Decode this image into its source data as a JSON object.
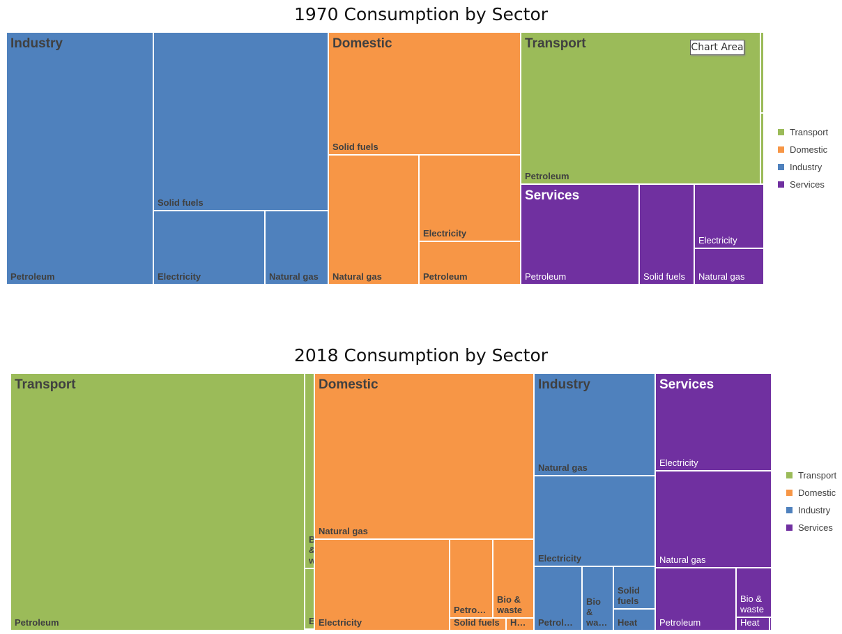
{
  "colors": {
    "Transport": "#9BBB59",
    "Domestic": "#F79646",
    "Industry": "#4F81BD",
    "Services": "#7030A0"
  },
  "tooltip": "Chart Area",
  "chart_data": [
    {
      "type": "treemap",
      "title": "1970 Consumption by Sector",
      "legend": [
        "Transport",
        "Domestic",
        "Industry",
        "Services"
      ],
      "legend_placement": "right",
      "sectors": [
        {
          "name": "Industry",
          "leaves": [
            {
              "label": "Petroleum",
              "value": 76.4
            },
            {
              "label": "Solid fuels",
              "value": 64.3
            },
            {
              "label": "Electricity",
              "value": 17.0
            },
            {
              "label": "Natural gas",
              "value": 9.6
            }
          ]
        },
        {
          "name": "Domestic",
          "leaves": [
            {
              "label": "Solid fuels",
              "value": 48.6
            },
            {
              "label": "Natural gas",
              "value": 24.2
            },
            {
              "label": "Electricity",
              "value": 18.1
            },
            {
              "label": "Petroleum",
              "value": 9.1
            }
          ]
        },
        {
          "name": "Transport",
          "leaves": [
            {
              "label": "Petroleum",
              "value": 75.0
            },
            {
              "label": "",
              "value": 0.6
            },
            {
              "label": "",
              "value": 0.5
            }
          ]
        },
        {
          "name": "Services",
          "leaves": [
            {
              "label": "Petroleum",
              "value": 24.5
            },
            {
              "label": "Solid fuels",
              "value": 11.4
            },
            {
              "label": "Electricity",
              "value": 9.2
            },
            {
              "label": "Natural gas",
              "value": 5.2
            }
          ]
        }
      ]
    },
    {
      "type": "treemap",
      "title": "2018 Consumption by Sector",
      "legend": [
        "Transport",
        "Domestic",
        "Industry",
        "Services"
      ],
      "legend_placement": "right",
      "sectors": [
        {
          "name": "Transport",
          "leaves": [
            {
              "label": "Petroleum",
              "value": 155.7
            },
            {
              "label": "B…\n&…\nw…",
              "value": 3.9
            },
            {
              "label": "E…",
              "value": 1.2
            },
            {
              "label": "",
              "value": 0.03
            }
          ]
        },
        {
          "name": "Domestic",
          "leaves": [
            {
              "label": "Natural gas",
              "value": 75.0
            },
            {
              "label": "Electricity",
              "value": 25.4
            },
            {
              "label": "Petro…",
              "value": 7.0
            },
            {
              "label": "Bio &\nwaste",
              "value": 6.7
            },
            {
              "label": "Solid fuels",
              "value": 1.5
            },
            {
              "label": "H…",
              "value": 0.7
            }
          ]
        },
        {
          "name": "Industry",
          "leaves": [
            {
              "label": "Natural gas",
              "value": 25.6
            },
            {
              "label": "Electricity",
              "value": 22.6
            },
            {
              "label": "Petrol…",
              "value": 6.3
            },
            {
              "label": "Bio\n&\nwa…",
              "value": 4.1
            },
            {
              "label": "Solid\nfuels",
              "value": 3.7
            },
            {
              "label": "Heat",
              "value": 1.9
            }
          ]
        },
        {
          "name": "Services",
          "leaves": [
            {
              "label": "Electricity",
              "value": 23.4
            },
            {
              "label": "Natural gas",
              "value": 23.2
            },
            {
              "label": "Petroleum",
              "value": 10.4
            },
            {
              "label": "Bio &\nwaste",
              "value": 3.6
            },
            {
              "label": "Heat",
              "value": 0.9
            },
            {
              "label": "",
              "value": 0.06
            }
          ]
        }
      ]
    }
  ]
}
